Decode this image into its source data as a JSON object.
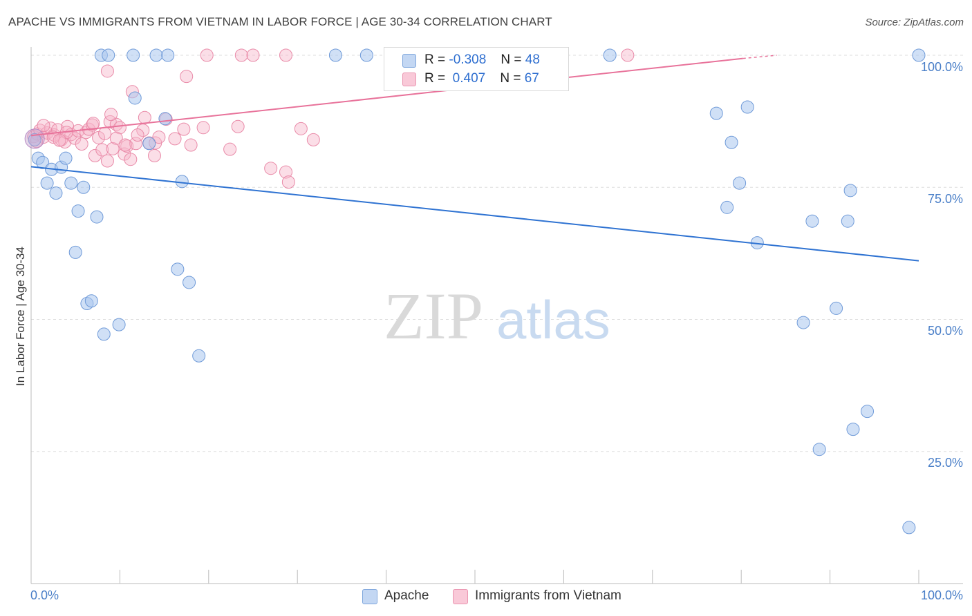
{
  "header": {
    "title": "APACHE VS IMMIGRANTS FROM VIETNAM IN LABOR FORCE | AGE 30-34 CORRELATION CHART",
    "source": "Source: ZipAtlas.com"
  },
  "watermark": {
    "part1": "ZIP",
    "part2": "atlas"
  },
  "colors": {
    "blue_fill": "#a9c7ee",
    "blue_stroke": "#6f9ad8",
    "blue_line": "#2f73d2",
    "pink_fill": "#f6b6c9",
    "pink_stroke": "#e98aa8",
    "pink_line": "#e8729a",
    "grid": "#dddddd",
    "tick_text": "#4a7fc8"
  },
  "legend": {
    "rows": [
      {
        "r_label": "R =",
        "r_value": "-0.308",
        "n_label": "N =",
        "n_value": "48"
      },
      {
        "r_label": "R =",
        "r_value": "0.407",
        "n_label": "N =",
        "n_value": "67"
      }
    ]
  },
  "bottom_legend": {
    "items": [
      "Apache",
      "Immigrants from Vietnam"
    ]
  },
  "chart_data": {
    "type": "scatter",
    "title": "APACHE VS IMMIGRANTS FROM VIETNAM IN LABOR FORCE | AGE 30-34 CORRELATION CHART",
    "xlabel": "",
    "ylabel": "In Labor Force | Age 30-34",
    "xlim": [
      0,
      100
    ],
    "ylim": [
      0,
      100
    ],
    "x_tick_labels": [
      "0.0%",
      "100.0%"
    ],
    "y_tick_labels": [
      "100.0%",
      "75.0%",
      "50.0%",
      "25.0%"
    ],
    "y_grid_values": [
      100,
      75,
      50,
      25
    ],
    "series": [
      {
        "name": "Apache",
        "r": -0.308,
        "n": 48,
        "trend": {
          "x": [
            0,
            100
          ],
          "y": [
            78.9,
            61.1
          ]
        },
        "points": [
          [
            0.8,
            80.5
          ],
          [
            1.3,
            79.7
          ],
          [
            1.8,
            75.8
          ],
          [
            2.3,
            78.4
          ],
          [
            2.8,
            73.9
          ],
          [
            3.4,
            78.8
          ],
          [
            3.9,
            80.5
          ],
          [
            4.5,
            75.8
          ],
          [
            5.3,
            70.5
          ],
          [
            5.9,
            75.0
          ],
          [
            5.0,
            62.7
          ],
          [
            7.4,
            69.4
          ],
          [
            6.3,
            53.0
          ],
          [
            6.8,
            53.5
          ],
          [
            8.2,
            47.2
          ],
          [
            9.9,
            49.0
          ],
          [
            7.9,
            100
          ],
          [
            8.7,
            100
          ],
          [
            11.5,
            100
          ],
          [
            14.1,
            100
          ],
          [
            15.4,
            100
          ],
          [
            11.7,
            91.9
          ],
          [
            13.3,
            83.3
          ],
          [
            15.1,
            88.0
          ],
          [
            16.5,
            59.5
          ],
          [
            17.0,
            76.1
          ],
          [
            17.8,
            57.0
          ],
          [
            18.9,
            43.1
          ],
          [
            34.3,
            100
          ],
          [
            37.8,
            100
          ],
          [
            65.2,
            100
          ],
          [
            100,
            100
          ],
          [
            77.2,
            89.0
          ],
          [
            80.7,
            90.2
          ],
          [
            78.9,
            83.5
          ],
          [
            79.8,
            75.8
          ],
          [
            78.4,
            71.2
          ],
          [
            81.8,
            64.5
          ],
          [
            88.0,
            68.6
          ],
          [
            92.0,
            68.6
          ],
          [
            92.3,
            74.4
          ],
          [
            87.0,
            49.4
          ],
          [
            90.7,
            52.1
          ],
          [
            92.6,
            29.2
          ],
          [
            94.2,
            32.6
          ],
          [
            88.8,
            25.4
          ],
          [
            98.9,
            10.6
          ],
          [
            0.4,
            84.0
          ]
        ]
      },
      {
        "name": "Immigrants from Vietnam",
        "r": 0.407,
        "n": 67,
        "trend": {
          "x": [
            0,
            80.2
          ],
          "y": [
            84.8,
            99.4
          ]
        },
        "trend_dashed": {
          "x": [
            80.2,
            84.0
          ],
          "y": [
            99.4,
            100.0
          ]
        },
        "points": [
          [
            0.3,
            84.6
          ],
          [
            0.7,
            85.1
          ],
          [
            1.0,
            85.8
          ],
          [
            1.4,
            84.5
          ],
          [
            1.8,
            85.3
          ],
          [
            2.2,
            86.2
          ],
          [
            2.6,
            84.9
          ],
          [
            3.0,
            85.9
          ],
          [
            3.4,
            84.0
          ],
          [
            3.8,
            83.6
          ],
          [
            4.1,
            86.5
          ],
          [
            4.5,
            85.0
          ],
          [
            4.9,
            84.3
          ],
          [
            5.3,
            85.7
          ],
          [
            5.7,
            83.2
          ],
          [
            6.2,
            85.4
          ],
          [
            6.5,
            86.0
          ],
          [
            6.9,
            86.8
          ],
          [
            7.2,
            81.0
          ],
          [
            7.6,
            84.4
          ],
          [
            8.0,
            82.1
          ],
          [
            8.3,
            85.2
          ],
          [
            8.6,
            80.0
          ],
          [
            8.9,
            87.4
          ],
          [
            9.2,
            82.3
          ],
          [
            9.6,
            86.9
          ],
          [
            10.0,
            86.3
          ],
          [
            10.5,
            81.3
          ],
          [
            10.8,
            82.8
          ],
          [
            11.2,
            80.3
          ],
          [
            11.8,
            83.3
          ],
          [
            12.6,
            85.8
          ],
          [
            13.3,
            83.4
          ],
          [
            13.9,
            81.0
          ],
          [
            14.0,
            83.4
          ],
          [
            14.4,
            84.5
          ],
          [
            15.2,
            87.9
          ],
          [
            16.2,
            84.2
          ],
          [
            17.2,
            86.0
          ],
          [
            18.0,
            83.0
          ],
          [
            9.0,
            88.8
          ],
          [
            8.6,
            97.0
          ],
          [
            11.4,
            93.1
          ],
          [
            12.8,
            88.2
          ],
          [
            17.5,
            96.0
          ],
          [
            19.4,
            86.3
          ],
          [
            23.3,
            86.5
          ],
          [
            22.4,
            82.2
          ],
          [
            27.0,
            78.6
          ],
          [
            28.7,
            77.9
          ],
          [
            29.0,
            76.0
          ],
          [
            30.4,
            86.1
          ],
          [
            31.8,
            84.0
          ],
          [
            19.8,
            100
          ],
          [
            23.7,
            100
          ],
          [
            25.0,
            100
          ],
          [
            28.7,
            100
          ],
          [
            67.2,
            100
          ],
          [
            1.4,
            86.7
          ],
          [
            2.5,
            84.5
          ],
          [
            0.6,
            83.7
          ],
          [
            7.0,
            87.1
          ],
          [
            9.6,
            84.3
          ],
          [
            10.6,
            83.0
          ],
          [
            12.0,
            84.9
          ],
          [
            4.0,
            85.4
          ],
          [
            3.2,
            83.9
          ]
        ]
      }
    ]
  }
}
